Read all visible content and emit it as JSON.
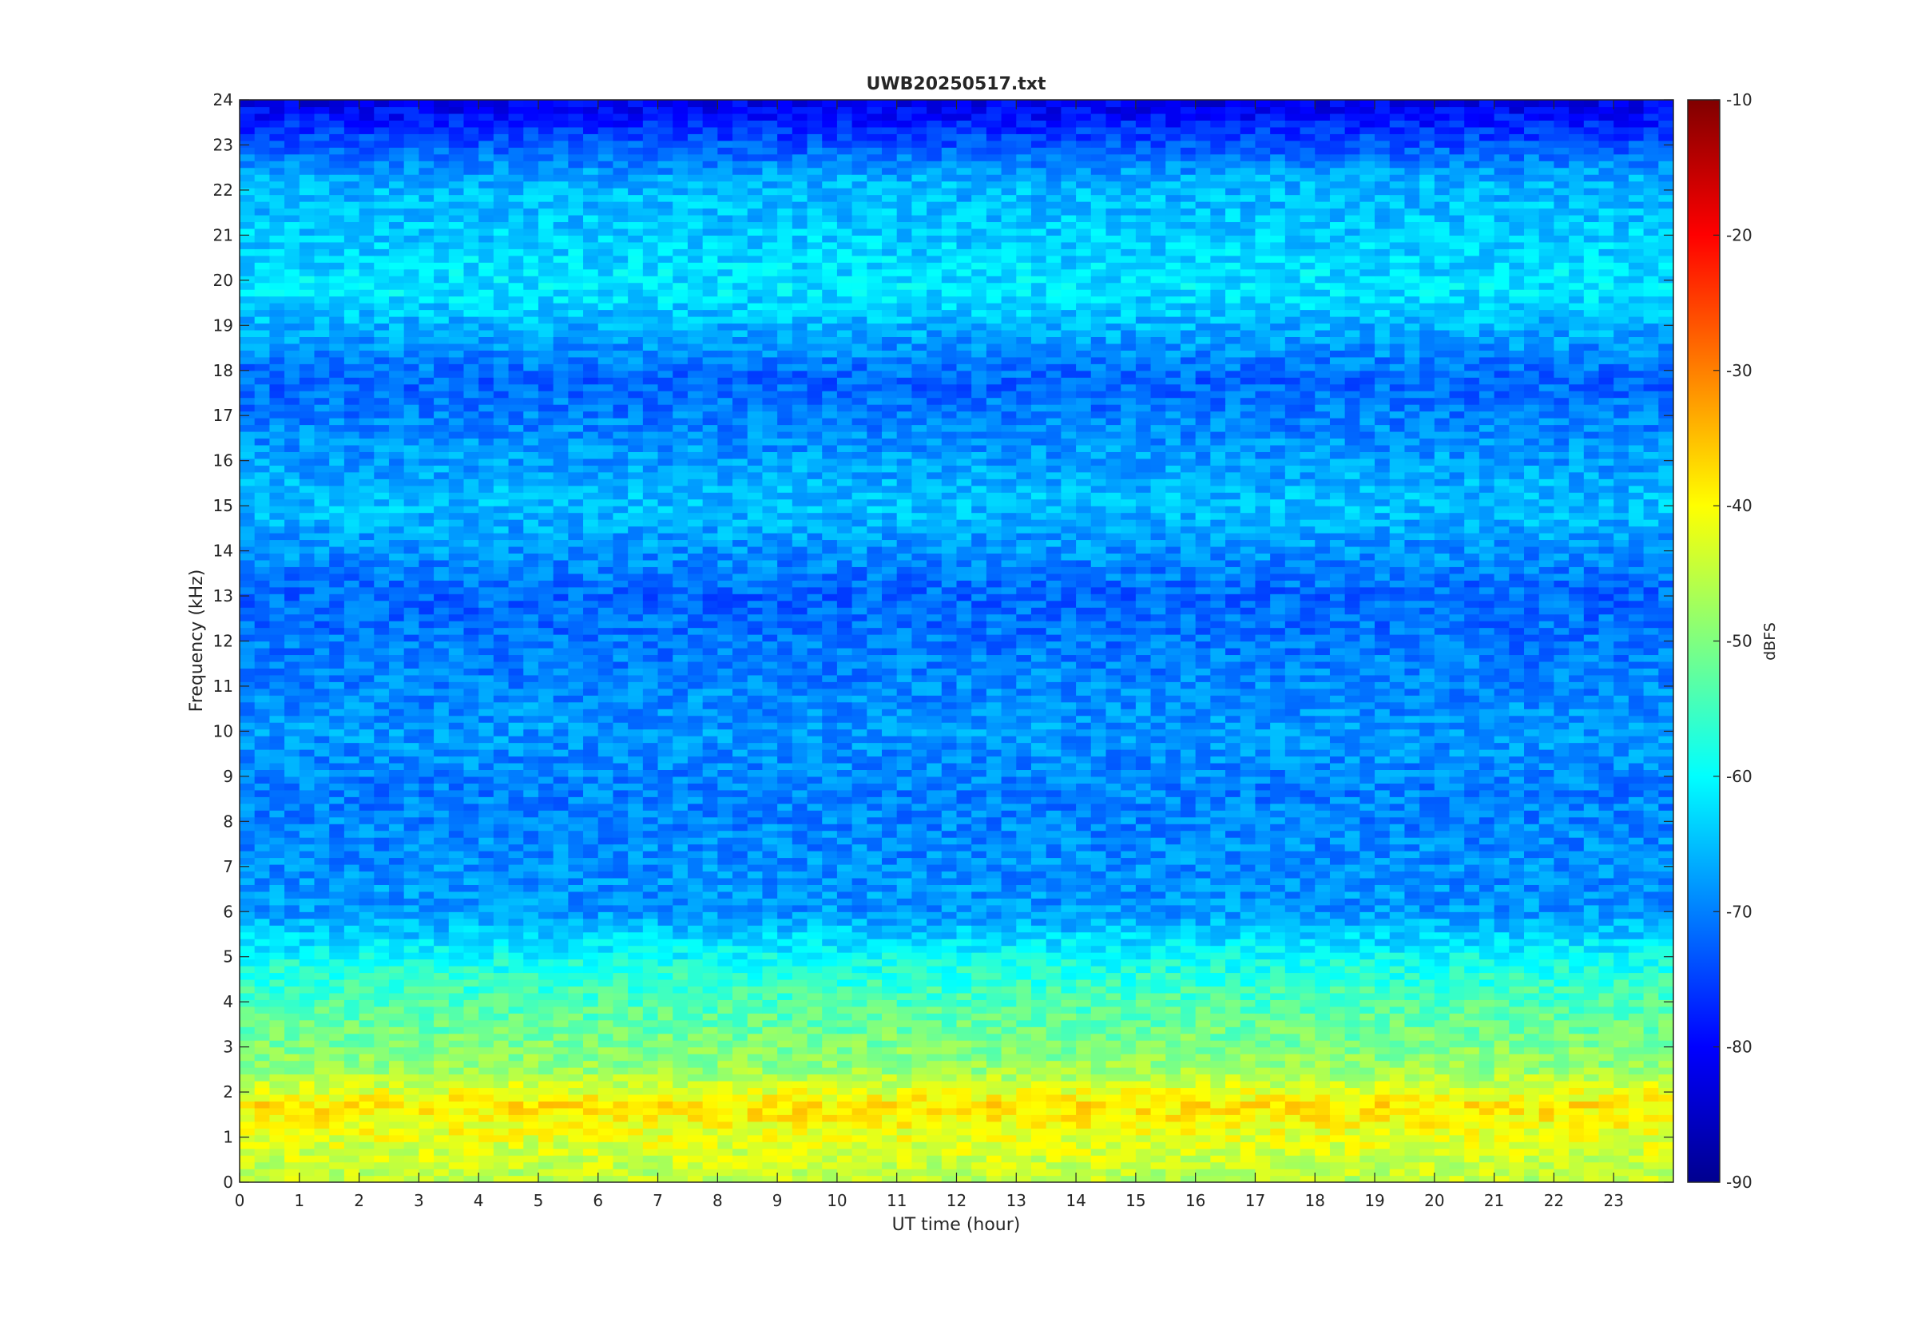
{
  "chart_data": {
    "type": "heatmap",
    "title": "UWB20250517.txt",
    "xlabel": "UT time (hour)",
    "ylabel": "Frequency (kHz)",
    "xlim": [
      0,
      24
    ],
    "ylim": [
      0,
      24
    ],
    "x_ticks": [
      "0",
      "1",
      "2",
      "3",
      "4",
      "5",
      "6",
      "7",
      "8",
      "9",
      "10",
      "11",
      "12",
      "13",
      "14",
      "15",
      "16",
      "17",
      "18",
      "19",
      "20",
      "21",
      "22",
      "23"
    ],
    "y_ticks": [
      "0",
      "1",
      "2",
      "3",
      "4",
      "5",
      "6",
      "7",
      "8",
      "9",
      "10",
      "11",
      "12",
      "13",
      "14",
      "15",
      "16",
      "17",
      "18",
      "19",
      "20",
      "21",
      "22",
      "23",
      "24"
    ],
    "colorbar": {
      "label": "dBFS",
      "range": [
        -90,
        -10
      ],
      "ticks": [
        "-90",
        "-80",
        "-70",
        "-60",
        "-50",
        "-40",
        "-30",
        "-20",
        "-10"
      ],
      "colormap": "jet"
    },
    "approx_intensity_profile_dBFS": [
      {
        "freq_khz": 0.2,
        "level": -45
      },
      {
        "freq_khz": 1.0,
        "level": -42
      },
      {
        "freq_khz": 1.7,
        "level": -38
      },
      {
        "freq_khz": 2.5,
        "level": -48
      },
      {
        "freq_khz": 3.0,
        "level": -50
      },
      {
        "freq_khz": 4.2,
        "level": -55
      },
      {
        "freq_khz": 4.8,
        "level": -58
      },
      {
        "freq_khz": 6.0,
        "level": -68
      },
      {
        "freq_khz": 8.7,
        "level": -70
      },
      {
        "freq_khz": 10.0,
        "level": -68
      },
      {
        "freq_khz": 13.0,
        "level": -72
      },
      {
        "freq_khz": 15.0,
        "level": -65
      },
      {
        "freq_khz": 17.8,
        "level": -72
      },
      {
        "freq_khz": 18.2,
        "level": -70
      },
      {
        "freq_khz": 19.8,
        "level": -62
      },
      {
        "freq_khz": 22.2,
        "level": -66
      },
      {
        "freq_khz": 24.0,
        "level": -82
      }
    ]
  }
}
